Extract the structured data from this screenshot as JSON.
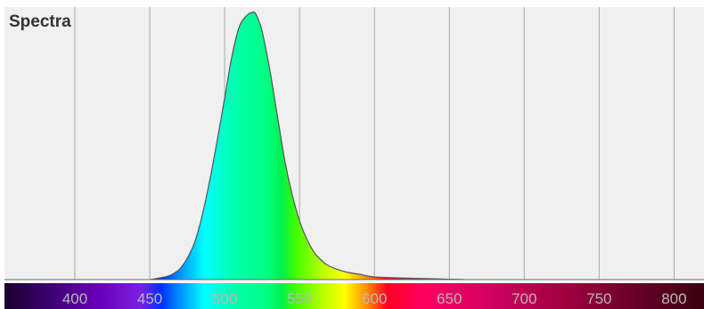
{
  "chart_data": {
    "type": "area",
    "title": "Spectra",
    "xlabel": "",
    "ylabel": "",
    "xlim": [
      353,
      820
    ],
    "ylim": [
      0,
      1
    ],
    "grid": true,
    "x_ticks": [
      400,
      450,
      500,
      550,
      600,
      650,
      700,
      750,
      800
    ],
    "x_tick_labels": [
      "400",
      "450",
      "500",
      "550",
      "600",
      "650",
      "700",
      "750",
      "800"
    ],
    "fill": "wavelength-rainbow",
    "series": [
      {
        "x": [
          450,
          460,
          465,
          470,
          475,
          480,
          485,
          490,
          495,
          500,
          505,
          510,
          515,
          518,
          520,
          522,
          525,
          530,
          535,
          540,
          545,
          550,
          555,
          560,
          565,
          570,
          580,
          590,
          600,
          620,
          640,
          660
        ],
        "values": [
          0.0,
          0.01,
          0.02,
          0.04,
          0.08,
          0.14,
          0.24,
          0.37,
          0.52,
          0.68,
          0.84,
          0.95,
          0.99,
          1.0,
          1.0,
          0.98,
          0.93,
          0.79,
          0.62,
          0.45,
          0.32,
          0.22,
          0.15,
          0.1,
          0.07,
          0.05,
          0.03,
          0.02,
          0.01,
          0.006,
          0.003,
          0.0
        ]
      }
    ]
  },
  "colors": {
    "plot_background": "#f0f0f0",
    "grid_line": "#a8a8a8",
    "curve_stroke": "#555555",
    "tick_label": "#b8b8b8",
    "title": "#333333"
  }
}
